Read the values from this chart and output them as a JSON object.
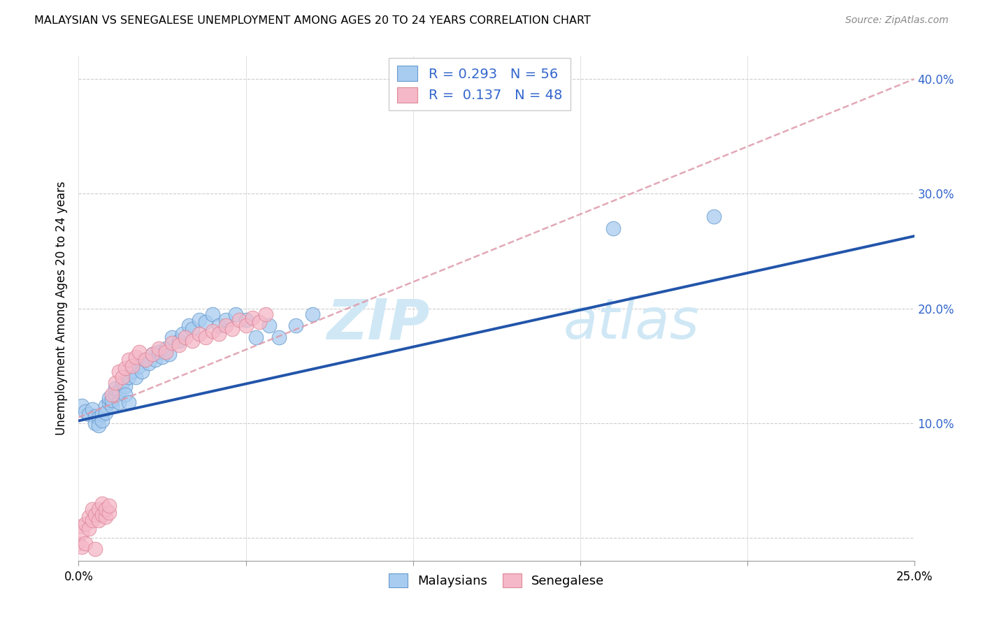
{
  "title": "MALAYSIAN VS SENEGALESE UNEMPLOYMENT AMONG AGES 20 TO 24 YEARS CORRELATION CHART",
  "source": "Source: ZipAtlas.com",
  "ylabel": "Unemployment Among Ages 20 to 24 years",
  "xlim": [
    0.0,
    0.25
  ],
  "ylim": [
    -0.02,
    0.42
  ],
  "xtick_positions": [
    0.0,
    0.05,
    0.1,
    0.15,
    0.2,
    0.25
  ],
  "xtick_labels": [
    "0.0%",
    "",
    "",
    "",
    "",
    "25.0%"
  ],
  "ytick_positions": [
    0.0,
    0.1,
    0.2,
    0.3,
    0.4
  ],
  "ytick_labels_right": [
    "",
    "10.0%",
    "20.0%",
    "30.0%",
    "40.0%"
  ],
  "malaysian_R": 0.293,
  "malaysian_N": 56,
  "senegalese_R": 0.137,
  "senegalese_N": 48,
  "blue_scatter_color": "#A8CCF0",
  "blue_edge_color": "#6699CC",
  "pink_scatter_color": "#F5B8C8",
  "pink_edge_color": "#DD8898",
  "blue_line_color": "#2255AA",
  "pink_line_color": "#DD99AA",
  "legend_text_color": "#3366CC",
  "watermark_color": "#D0E8F5",
  "malaysian_x": [
    0.001,
    0.002,
    0.003,
    0.004,
    0.005,
    0.005,
    0.006,
    0.006,
    0.007,
    0.007,
    0.008,
    0.008,
    0.009,
    0.009,
    0.01,
    0.01,
    0.011,
    0.011,
    0.012,
    0.012,
    0.013,
    0.014,
    0.014,
    0.015,
    0.015,
    0.016,
    0.017,
    0.018,
    0.019,
    0.02,
    0.021,
    0.022,
    0.023,
    0.024,
    0.025,
    0.026,
    0.027,
    0.028,
    0.03,
    0.031,
    0.033,
    0.034,
    0.036,
    0.038,
    0.04,
    0.042,
    0.044,
    0.047,
    0.05,
    0.053,
    0.057,
    0.06,
    0.065,
    0.07,
    0.16,
    0.19
  ],
  "malaysian_y": [
    0.115,
    0.11,
    0.108,
    0.112,
    0.106,
    0.1,
    0.105,
    0.098,
    0.108,
    0.102,
    0.115,
    0.109,
    0.118,
    0.122,
    0.115,
    0.12,
    0.125,
    0.13,
    0.128,
    0.118,
    0.135,
    0.132,
    0.125,
    0.14,
    0.118,
    0.145,
    0.14,
    0.15,
    0.145,
    0.155,
    0.152,
    0.16,
    0.155,
    0.162,
    0.158,
    0.165,
    0.16,
    0.175,
    0.172,
    0.178,
    0.185,
    0.182,
    0.19,
    0.188,
    0.195,
    0.185,
    0.19,
    0.195,
    0.19,
    0.175,
    0.185,
    0.175,
    0.185,
    0.195,
    0.27,
    0.28
  ],
  "senegalese_x": [
    0.0,
    0.0,
    0.001,
    0.001,
    0.002,
    0.002,
    0.003,
    0.003,
    0.004,
    0.004,
    0.005,
    0.005,
    0.006,
    0.006,
    0.007,
    0.007,
    0.008,
    0.008,
    0.009,
    0.009,
    0.01,
    0.011,
    0.012,
    0.013,
    0.014,
    0.015,
    0.016,
    0.017,
    0.018,
    0.02,
    0.022,
    0.024,
    0.026,
    0.028,
    0.03,
    0.032,
    0.034,
    0.036,
    0.038,
    0.04,
    0.042,
    0.044,
    0.046,
    0.048,
    0.05,
    0.052,
    0.054,
    0.056
  ],
  "senegalese_y": [
    -0.005,
    0.01,
    -0.008,
    0.005,
    0.012,
    -0.005,
    0.008,
    0.018,
    0.015,
    0.025,
    0.02,
    -0.01,
    0.025,
    0.015,
    0.02,
    0.03,
    0.018,
    0.025,
    0.022,
    0.028,
    0.125,
    0.135,
    0.145,
    0.14,
    0.148,
    0.155,
    0.15,
    0.158,
    0.162,
    0.155,
    0.16,
    0.165,
    0.162,
    0.17,
    0.168,
    0.175,
    0.172,
    0.178,
    0.175,
    0.18,
    0.178,
    0.185,
    0.182,
    0.19,
    0.185,
    0.192,
    0.188,
    0.195
  ],
  "blue_regression_x0": 0.0,
  "blue_regression_y0": 0.102,
  "blue_regression_x1": 0.25,
  "blue_regression_y1": 0.263,
  "pink_regression_x0": 0.0,
  "pink_regression_y0": 0.105,
  "pink_regression_x1": 0.25,
  "pink_regression_y1": 0.4
}
